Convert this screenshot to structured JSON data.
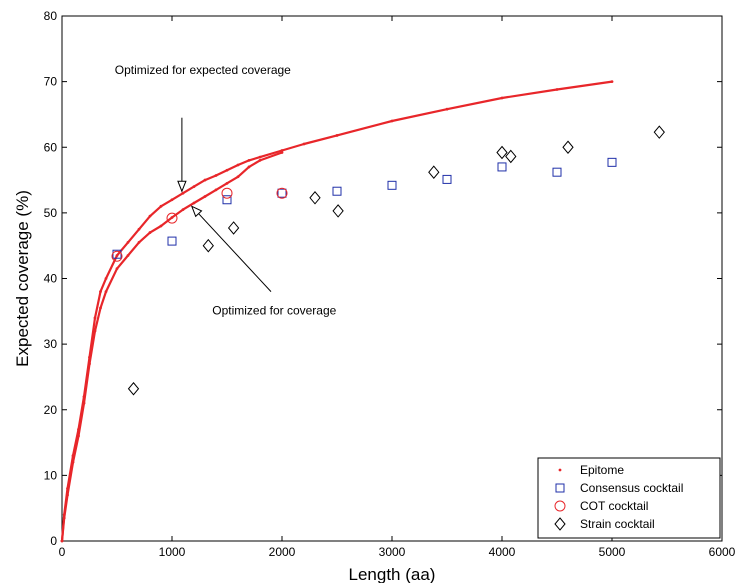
{
  "chart_data": {
    "type": "scatter",
    "title": "",
    "xlabel": "Length (aa)",
    "ylabel": "Expected coverage (%)",
    "xlim": [
      0,
      6000
    ],
    "ylim": [
      0,
      80
    ],
    "xticks": [
      0,
      1000,
      2000,
      3000,
      4000,
      5000,
      6000
    ],
    "yticks": [
      0,
      10,
      20,
      30,
      40,
      50,
      60,
      70,
      80
    ],
    "grid": false,
    "legend_position": "bottom-right",
    "series": [
      {
        "name": "Epitome",
        "marker": "dot",
        "color": "#e8262a",
        "curves": [
          {
            "label": "Optimized for expected coverage",
            "x": [
              0,
              20,
              50,
              100,
              150,
              200,
              250,
              300,
              350,
              400,
              500,
              600,
              700,
              800,
              900,
              1000,
              1100,
              1200,
              1300,
              1400,
              1500,
              1600,
              1700,
              1800,
              2000,
              2200,
              2500,
              3000,
              3500,
              4000,
              4500,
              5000
            ],
            "y": [
              0,
              4,
              8,
              13,
              17,
              22,
              28,
              34,
              38,
              40,
              43.5,
              45.5,
              47.5,
              49.5,
              51,
              52,
              53,
              54,
              55,
              55.7,
              56.5,
              57.3,
              58,
              58.5,
              59.5,
              60.5,
              61.8,
              64,
              65.8,
              67.5,
              68.8,
              70
            ]
          },
          {
            "label": "Optimized for coverage",
            "x": [
              0,
              20,
              50,
              100,
              150,
              200,
              250,
              300,
              350,
              400,
              500,
              600,
              700,
              800,
              900,
              1000,
              1100,
              1200,
              1300,
              1400,
              1500,
              1600,
              1700,
              1800,
              2000
            ],
            "y": [
              0,
              3.5,
              7,
              12,
              16,
              21,
              27,
              32,
              35.5,
              38,
              41.5,
              43.5,
              45.5,
              47,
              48,
              49.3,
              50.5,
              51.5,
              52.5,
              53.5,
              54.5,
              55.5,
              57,
              58,
              59.2
            ]
          }
        ]
      },
      {
        "name": "Consensus cocktail",
        "marker": "square",
        "color": "#1f2fa8",
        "x": [
          500,
          1000,
          1500,
          2000,
          2500,
          3000,
          3500,
          4000,
          4500,
          5000
        ],
        "y": [
          43.7,
          45.7,
          52,
          53,
          53.3,
          54.2,
          55.1,
          57,
          56.2,
          57.7
        ]
      },
      {
        "name": "COT cocktail",
        "marker": "circle",
        "color": "#e8262a",
        "x": [
          500,
          1000,
          1500,
          2000
        ],
        "y": [
          43.4,
          49.2,
          53,
          53
        ]
      },
      {
        "name": "Strain cocktail",
        "marker": "diamond",
        "color": "#000000",
        "x": [
          650,
          1330,
          1560,
          2300,
          2510,
          3380,
          4000,
          4080,
          4600,
          5430
        ],
        "y": [
          23.2,
          45,
          47.7,
          52.3,
          50.3,
          56.2,
          59.2,
          58.6,
          60,
          62.3
        ]
      }
    ],
    "annotations": [
      {
        "text": "Optimized for expected coverage",
        "text_x": 1280,
        "text_y": 71.2,
        "arrow_from": [
          1090,
          64.5
        ],
        "arrow_to": [
          1090,
          53.3
        ]
      },
      {
        "text": "Optimized for coverage",
        "text_x": 1930,
        "text_y": 34.5,
        "arrow_from": [
          1900,
          38
        ],
        "arrow_to": [
          1180,
          51
        ]
      }
    ]
  }
}
